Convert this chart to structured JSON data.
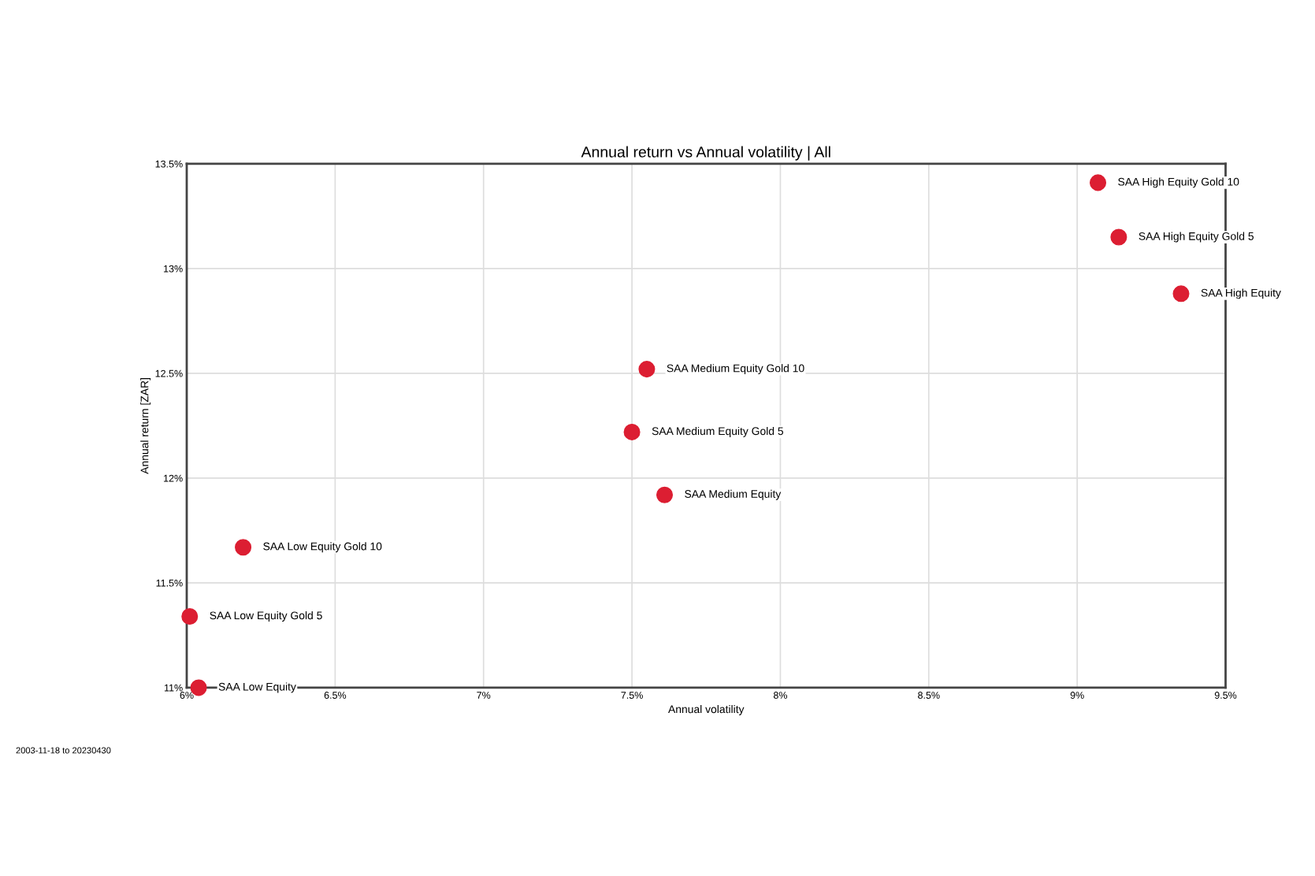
{
  "chart_data": {
    "type": "scatter",
    "title": "Annual return vs Annual volatility | All",
    "xlabel": "Annual volatility",
    "ylabel": "Annual return [ZAR]",
    "series": [
      {
        "name": "SAA High Equity Gold 10",
        "color": "#dc1e32",
        "x": [
          9.07
        ],
        "values": [
          13.41
        ]
      },
      {
        "name": "SAA High Equity Gold 5",
        "color": "#dc1e32",
        "x": [
          9.14
        ],
        "values": [
          13.15
        ]
      },
      {
        "name": "SAA High Equity",
        "color": "#dc1e32",
        "x": [
          9.35
        ],
        "values": [
          12.88
        ]
      },
      {
        "name": "SAA Medium Equity Gold 10",
        "color": "#dc1e32",
        "x": [
          7.55
        ],
        "values": [
          12.52
        ]
      },
      {
        "name": "SAA Medium Equity Gold 5",
        "color": "#dc1e32",
        "x": [
          7.5
        ],
        "values": [
          12.22
        ]
      },
      {
        "name": "SAA Medium Equity",
        "color": "#dc1e32",
        "x": [
          7.61
        ],
        "values": [
          11.92
        ]
      },
      {
        "name": "SAA Low Equity Gold 10",
        "color": "#dc1e32",
        "x": [
          6.19
        ],
        "values": [
          11.67
        ]
      },
      {
        "name": "SAA Low Equity Gold 5",
        "color": "#dc1e32",
        "x": [
          6.01
        ],
        "values": [
          11.34
        ]
      },
      {
        "name": "SAA Low Equity",
        "color": "#dc1e32",
        "x": [
          6.04
        ],
        "values": [
          11.0
        ]
      }
    ],
    "marker": "circle",
    "grid": true,
    "xlim": [
      6,
      9.5
    ],
    "xticks": [
      {
        "value": 6,
        "label": "6%"
      },
      {
        "value": 6.5,
        "label": "6.5%"
      },
      {
        "value": 7,
        "label": "7%"
      },
      {
        "value": 7.5,
        "label": "7.5%"
      },
      {
        "value": 8,
        "label": "8%"
      },
      {
        "value": 8.5,
        "label": "8.5%"
      },
      {
        "value": 9,
        "label": "9%"
      },
      {
        "value": 9.5,
        "label": "9.5%"
      }
    ],
    "ylim": [
      11,
      13.5
    ],
    "yticks": [
      {
        "value": 11,
        "label": "11%"
      },
      {
        "value": 11.5,
        "label": "11.5%"
      },
      {
        "value": 12,
        "label": "12%"
      },
      {
        "value": 12.5,
        "label": "12.5%"
      },
      {
        "value": 13,
        "label": "13%"
      },
      {
        "value": 13.5,
        "label": "13.5%"
      }
    ],
    "annotations": [
      "2003-11-18 to 20230430"
    ]
  }
}
